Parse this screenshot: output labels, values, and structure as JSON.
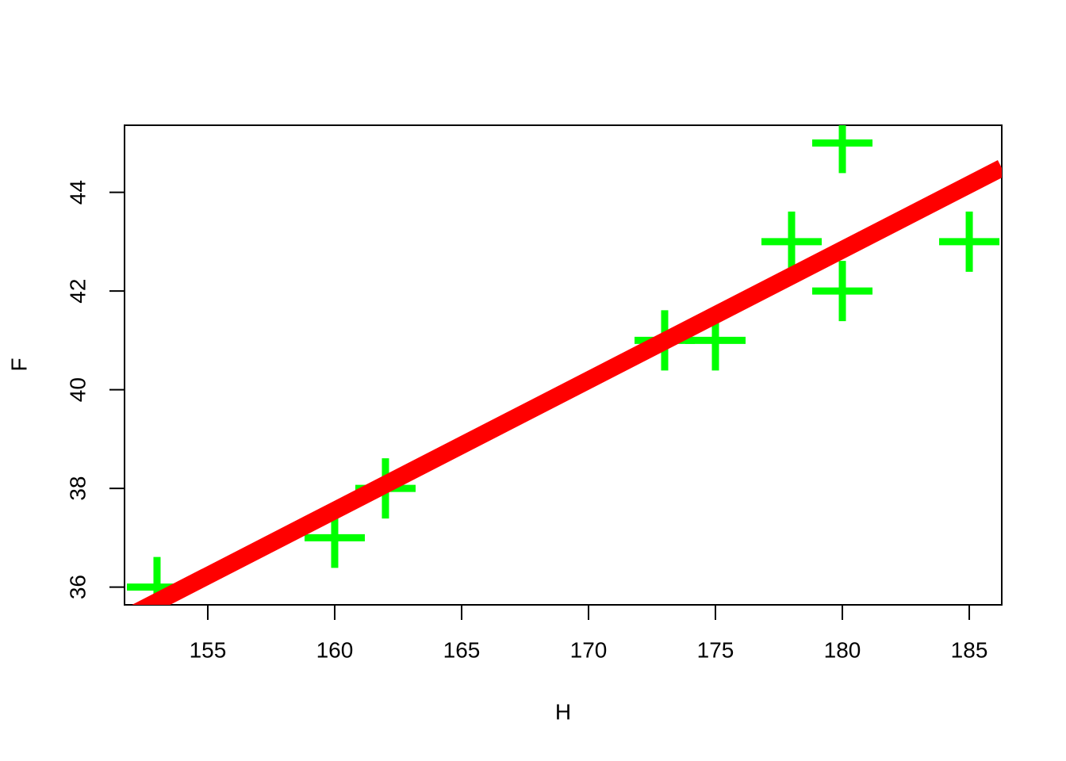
{
  "chart_data": {
    "type": "scatter",
    "x": [
      153,
      160,
      162,
      173,
      175,
      178,
      180,
      180,
      185
    ],
    "series": [
      {
        "color": "#00ff00",
        "values": [
          36,
          37,
          38,
          41,
          41,
          43,
          42,
          45,
          43
        ]
      }
    ],
    "fit_line": {
      "intercept": -4.72,
      "slope": 0.2642,
      "color": "#ff0000"
    },
    "xlabel": "H",
    "ylabel": "F",
    "xlim": [
      151.72,
      186.28
    ],
    "ylim": [
      35.64,
      45.36
    ],
    "xticks": [
      155,
      160,
      165,
      170,
      175,
      180,
      185
    ],
    "yticks": [
      36,
      38,
      40,
      42,
      44
    ]
  }
}
